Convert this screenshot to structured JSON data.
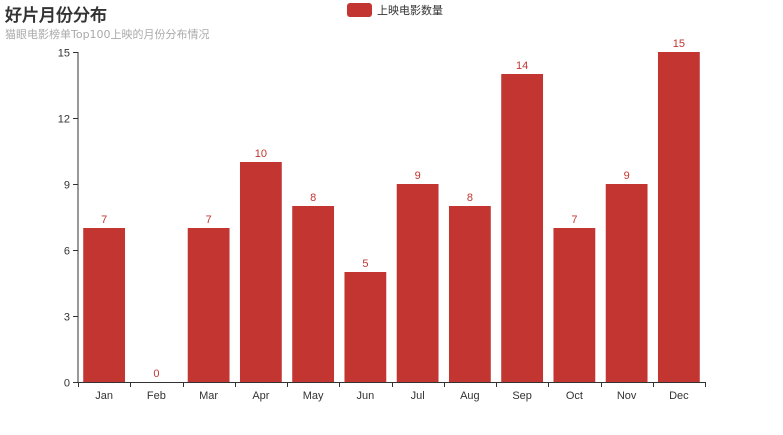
{
  "chart_data": {
    "type": "bar",
    "title": "好片月份分布",
    "subtitle": "猫眼电影榜单Top100上映的月份分布情况",
    "categories": [
      "Jan",
      "Feb",
      "Mar",
      "Apr",
      "May",
      "Jun",
      "Jul",
      "Aug",
      "Sep",
      "Oct",
      "Nov",
      "Dec"
    ],
    "series": [
      {
        "name": "上映电影数量",
        "values": [
          7,
          0,
          7,
          10,
          8,
          5,
          9,
          8,
          14,
          7,
          9,
          15
        ],
        "color": "#c23531"
      }
    ],
    "ylim": [
      0,
      15
    ],
    "yticks": [
      0,
      3,
      6,
      9,
      12,
      15
    ],
    "grid": false,
    "legend_position": "top-center",
    "data_labels": "top"
  }
}
